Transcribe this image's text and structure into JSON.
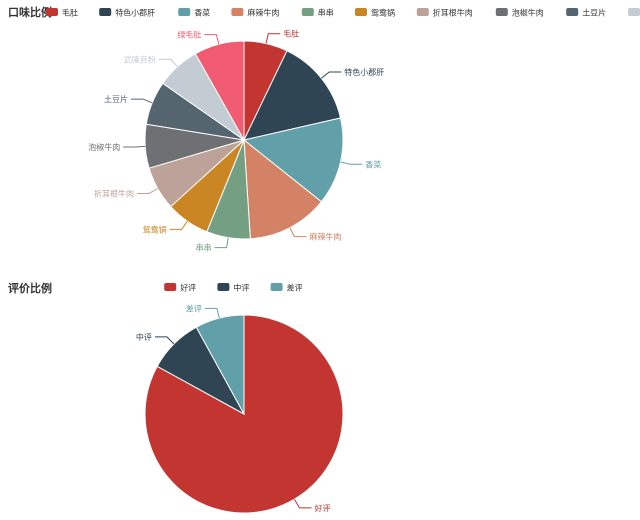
{
  "chart_data": [
    {
      "type": "pie",
      "title": "口味比例",
      "legend_placement": "top",
      "categories": [
        "毛肚",
        "特色小郡肝",
        "香菜",
        "麻辣牛肉",
        "串串",
        "鸳鸯锅",
        "折耳根牛肉",
        "泡椒牛肉",
        "土豆片",
        "武隆苕粉",
        "绿毛肚"
      ],
      "values": [
        7,
        14,
        14,
        13,
        7,
        7,
        7,
        7,
        7,
        7,
        8
      ],
      "colors": [
        "#c23531",
        "#2f4554",
        "#61a0a8",
        "#d48265",
        "#749f83",
        "#ca8622",
        "#bda29a",
        "#6e7074",
        "#546570",
        "#c4ccd3",
        "#f05b72"
      ]
    },
    {
      "type": "pie",
      "title": "评价比例",
      "legend_placement": "top",
      "categories": [
        "好评",
        "中评",
        "差评"
      ],
      "values": [
        83,
        9,
        8
      ],
      "colors": [
        "#c23531",
        "#2f4554",
        "#61a0a8"
      ]
    }
  ]
}
